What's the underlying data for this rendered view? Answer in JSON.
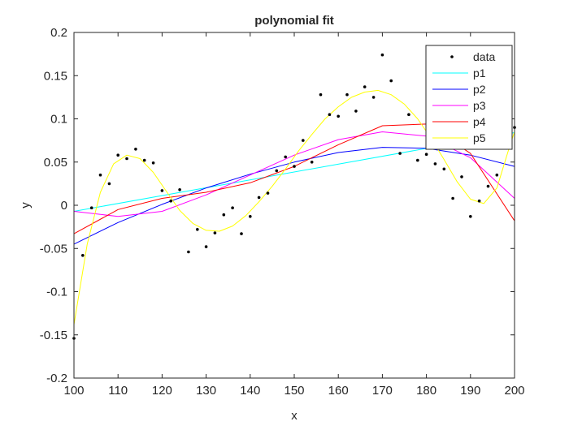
{
  "chart_data": {
    "type": "line",
    "title": "polynomial fit",
    "xlabel": "x",
    "ylabel": "y",
    "xlim": [
      100,
      200
    ],
    "ylim": [
      -0.2,
      0.2
    ],
    "xticks": [
      100,
      110,
      120,
      130,
      140,
      150,
      160,
      170,
      180,
      190,
      200
    ],
    "yticks": [
      -0.2,
      -0.15,
      -0.1,
      -0.05,
      0,
      0.05,
      0.1,
      0.15,
      0.2
    ],
    "xtick_labels": [
      "100",
      "110",
      "120",
      "130",
      "140",
      "150",
      "160",
      "170",
      "180",
      "190",
      "200"
    ],
    "ytick_labels": [
      "-0.2",
      "-0.15",
      "-0.1",
      "-0.05",
      "0",
      "0.05",
      "0.1",
      "0.15",
      "0.2"
    ],
    "grid": false,
    "legend_position": "top-right",
    "legend": [
      "data",
      "p1",
      "p2",
      "p3",
      "p4",
      "p5"
    ],
    "scatter": {
      "name": "data",
      "color": "#000000",
      "x": [
        100,
        102,
        104,
        106,
        108,
        110,
        112,
        114,
        116,
        118,
        120,
        122,
        124,
        126,
        128,
        130,
        132,
        134,
        136,
        138,
        140,
        142,
        144,
        146,
        148,
        150,
        152,
        154,
        156,
        158,
        160,
        162,
        164,
        166,
        168,
        170,
        172,
        174,
        176,
        178,
        180,
        182,
        184,
        186,
        188,
        190,
        192,
        194,
        196,
        198,
        200
      ],
      "y": [
        -0.154,
        -0.058,
        -0.003,
        0.035,
        0.025,
        0.058,
        0.054,
        0.065,
        0.052,
        0.049,
        0.017,
        0.005,
        0.018,
        -0.054,
        -0.028,
        -0.048,
        -0.032,
        -0.011,
        -0.003,
        -0.033,
        -0.013,
        0.009,
        0.014,
        0.04,
        0.056,
        0.045,
        0.075,
        0.05,
        0.128,
        0.105,
        0.103,
        0.128,
        0.109,
        0.137,
        0.125,
        0.174,
        0.144,
        0.06,
        0.105,
        0.052,
        0.059,
        0.048,
        0.042,
        0.008,
        0.033,
        -0.013,
        0.005,
        0.022,
        0.035,
        0.09,
        0.09
      ]
    },
    "series": [
      {
        "name": "p1",
        "color": "#00FFFF",
        "x": [
          100,
          200
        ],
        "y": [
          -0.007,
          0.084
        ]
      },
      {
        "name": "p2",
        "color": "#0000FF",
        "x": [
          100,
          110,
          120,
          130,
          140,
          150,
          160,
          170,
          180,
          190,
          200
        ],
        "y": [
          -0.045,
          -0.02,
          0.001,
          0.02,
          0.036,
          0.05,
          0.061,
          0.067,
          0.066,
          0.058,
          0.045
        ]
      },
      {
        "name": "p3",
        "color": "#FF00FF",
        "x": [
          100,
          110,
          120,
          130,
          140,
          150,
          160,
          170,
          180,
          190,
          200
        ],
        "y": [
          -0.007,
          -0.013,
          -0.007,
          0.012,
          0.035,
          0.058,
          0.076,
          0.085,
          0.08,
          0.055,
          0.008
        ]
      },
      {
        "name": "p4",
        "color": "#FF0000",
        "x": [
          100,
          110,
          120,
          130,
          140,
          150,
          160,
          170,
          180,
          190,
          200
        ],
        "y": [
          -0.033,
          -0.005,
          0.008,
          0.015,
          0.026,
          0.045,
          0.07,
          0.092,
          0.094,
          0.06,
          -0.018
        ]
      },
      {
        "name": "p5",
        "color": "#FFFF00",
        "x": [
          100,
          103,
          106,
          109,
          112,
          115,
          118,
          121,
          124,
          127,
          130,
          133,
          136,
          139,
          142,
          145,
          148,
          151,
          154,
          157,
          160,
          163,
          166,
          169,
          172,
          175,
          178,
          181,
          184,
          187,
          190,
          193,
          196,
          199,
          200
        ],
        "y": [
          -0.138,
          -0.045,
          0.015,
          0.048,
          0.058,
          0.054,
          0.038,
          0.016,
          -0.006,
          -0.021,
          -0.029,
          -0.03,
          -0.024,
          -0.012,
          0.004,
          0.022,
          0.042,
          0.063,
          0.082,
          0.1,
          0.114,
          0.125,
          0.131,
          0.133,
          0.128,
          0.117,
          0.1,
          0.078,
          0.053,
          0.027,
          0.007,
          0.002,
          0.02,
          0.07,
          0.085
        ]
      }
    ]
  }
}
